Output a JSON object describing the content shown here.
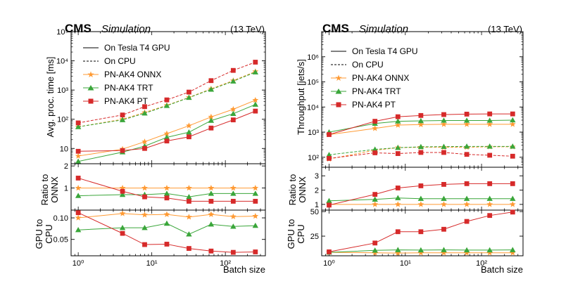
{
  "colors": {
    "onnx": "#ff9a33",
    "trt": "#3aa63a",
    "pt": "#d62a2a",
    "axis": "#000000"
  },
  "batch_sizes": [
    1,
    4,
    8,
    16,
    32,
    64,
    128,
    256
  ],
  "chart_data": [
    {
      "type": "line",
      "title": "CMS Simulation (13 TeV)",
      "header": {
        "cms": "CMS",
        "sim": "Simulation",
        "energy": "(13 TeV)"
      },
      "xlabel": "Batch size",
      "xscale": "log",
      "xlim": [
        0.8,
        350
      ],
      "xticks": [
        {
          "v": 1,
          "label": "10⁰"
        },
        {
          "v": 10,
          "label": "10¹"
        },
        {
          "v": 100,
          "label": "10²"
        }
      ],
      "legend": {
        "placement": "top-left",
        "style_entries": [
          {
            "label": "On Tesla T4 GPU",
            "dash": "solid"
          },
          {
            "label": "On CPU",
            "dash": "dashed"
          }
        ],
        "series_entries": [
          {
            "key": "onnx",
            "label": "PN-AK4 ONNX",
            "marker": "star"
          },
          {
            "key": "trt",
            "label": "PN-AK4 TRT",
            "marker": "triangle"
          },
          {
            "key": "pt",
            "label": "PN-AK4 PT",
            "marker": "square"
          }
        ]
      },
      "panels": [
        {
          "id": "main",
          "ylabel": "Avg. proc. time [ms]",
          "yscale": "log",
          "ylim": [
            3,
            100000
          ],
          "yticks": [
            {
              "v": 10,
              "label": "10"
            },
            {
              "v": 100,
              "label": "10²"
            },
            {
              "v": 1000,
              "label": "10³"
            },
            {
              "v": 10000,
              "label": "10⁴"
            },
            {
              "v": 100000,
              "label": "10⁵"
            }
          ],
          "series": [
            {
              "key": "onnx",
              "device": "GPU",
              "values": [
                5.5,
                9.5,
                17,
                32,
                60,
                120,
                220,
                450
              ]
            },
            {
              "key": "trt",
              "device": "GPU",
              "values": [
                3.6,
                7.5,
                12,
                24,
                36,
                90,
                155,
                320
              ]
            },
            {
              "key": "pt",
              "device": "GPU",
              "values": [
                8,
                8.5,
                10,
                18,
                25,
                50,
                95,
                190
              ]
            },
            {
              "key": "onnx",
              "device": "CPU",
              "values": [
                55,
                100,
                170,
                300,
                560,
                1100,
                2100,
                4300
              ]
            },
            {
              "key": "trt",
              "device": "CPU",
              "values": [
                55,
                95,
                160,
                290,
                550,
                1050,
                2000,
                4100
              ]
            },
            {
              "key": "pt",
              "device": "CPU",
              "values": [
                75,
                140,
                270,
                460,
                850,
                2100,
                4700,
                9000
              ]
            }
          ]
        },
        {
          "id": "ratio",
          "ylabel_lines": [
            "Ratio to",
            "ONNX"
          ],
          "yscale": "linear",
          "ylim": [
            0,
            2.1
          ],
          "yticks": [
            {
              "v": 1,
              "label": "1"
            },
            {
              "v": 2,
              "label": "2"
            }
          ],
          "series": [
            {
              "key": "onnx",
              "values": [
                1,
                1,
                1,
                1,
                1,
                1,
                1,
                1
              ]
            },
            {
              "key": "trt",
              "values": [
                0.65,
                0.7,
                0.7,
                0.75,
                0.6,
                0.75,
                0.75,
                0.75
              ]
            },
            {
              "key": "pt",
              "values": [
                1.45,
                0.85,
                0.6,
                0.55,
                0.4,
                0.4,
                0.4,
                0.4
              ]
            }
          ]
        },
        {
          "id": "gpucpu",
          "ylabel_lines": [
            "GPU to",
            "CPU"
          ],
          "yscale": "linear",
          "ylim": [
            0.012,
            0.118
          ],
          "yticks": [
            {
              "v": 0.05,
              "label": "0.05"
            },
            {
              "v": 0.1,
              "label": "0.10"
            }
          ],
          "series": [
            {
              "key": "onnx",
              "values": [
                0.1,
                0.11,
                0.107,
                0.108,
                0.102,
                0.108,
                0.103,
                0.104
              ]
            },
            {
              "key": "trt",
              "values": [
                0.072,
                0.077,
                0.077,
                0.087,
                0.062,
                0.085,
                0.08,
                0.082
              ]
            },
            {
              "key": "pt",
              "values": [
                0.112,
                0.064,
                0.038,
                0.039,
                0.029,
                0.023,
                0.02,
                0.021
              ]
            }
          ]
        }
      ]
    },
    {
      "type": "line",
      "title": "CMS Simulation (13 TeV)",
      "header": {
        "cms": "CMS",
        "sim": "Simulation",
        "energy": "(13 TeV)"
      },
      "xlabel": "Batch size",
      "xscale": "log",
      "xlim": [
        0.8,
        350
      ],
      "xticks": [
        {
          "v": 1,
          "label": "10⁰"
        },
        {
          "v": 10,
          "label": "10¹"
        },
        {
          "v": 100,
          "label": "10²"
        }
      ],
      "legend": {
        "placement": "top-left",
        "style_entries": [
          {
            "label": "On Tesla T4 GPU",
            "dash": "solid"
          },
          {
            "label": "On CPU",
            "dash": "dashed"
          }
        ],
        "series_entries": [
          {
            "key": "onnx",
            "label": "PN-AK4 ONNX",
            "marker": "star"
          },
          {
            "key": "trt",
            "label": "PN-AK4 TRT",
            "marker": "triangle"
          },
          {
            "key": "pt",
            "label": "PN-AK4 PT",
            "marker": "square"
          }
        ]
      },
      "panels": [
        {
          "id": "main",
          "ylabel": "Throughput [jets/s]",
          "yscale": "log",
          "ylim": [
            40,
            10000000
          ],
          "yticks": [
            {
              "v": 100,
              "label": "10²"
            },
            {
              "v": 1000,
              "label": "10³"
            },
            {
              "v": 10000,
              "label": "10⁴"
            },
            {
              "v": 100000,
              "label": "10⁵"
            },
            {
              "v": 1000000,
              "label": "10⁶"
            }
          ],
          "series": [
            {
              "key": "onnx",
              "device": "GPU",
              "values": [
                800,
                1400,
                1900,
                2000,
                2050,
                2050,
                2050,
                2050
              ]
            },
            {
              "key": "trt",
              "device": "GPU",
              "values": [
                1000,
                2200,
                2700,
                2800,
                2900,
                2900,
                2900,
                3000
              ]
            },
            {
              "key": "pt",
              "device": "GPU",
              "values": [
                800,
                2700,
                4100,
                4600,
                5000,
                5200,
                5300,
                5300
              ]
            },
            {
              "key": "onnx",
              "device": "CPU",
              "values": [
                85,
                190,
                240,
                250,
                250,
                250,
                260,
                260
              ]
            },
            {
              "key": "trt",
              "device": "CPU",
              "values": [
                125,
                205,
                240,
                260,
                265,
                270,
                270,
                270
              ]
            },
            {
              "key": "pt",
              "device": "CPU",
              "values": [
                90,
                150,
                140,
                155,
                155,
                130,
                120,
                110
              ]
            }
          ]
        },
        {
          "id": "ratio",
          "ylabel_lines": [
            "Ratio to",
            "ONNX"
          ],
          "yscale": "linear",
          "ylim": [
            0.6,
            3.6
          ],
          "yticks": [
            {
              "v": 1,
              "label": "1"
            },
            {
              "v": 2,
              "label": "2"
            },
            {
              "v": 3,
              "label": "3"
            }
          ],
          "series": [
            {
              "key": "onnx",
              "values": [
                1,
                1,
                1,
                1,
                1,
                1,
                1,
                1
              ]
            },
            {
              "key": "trt",
              "values": [
                1.25,
                1.35,
                1.45,
                1.4,
                1.4,
                1.4,
                1.4,
                1.4
              ]
            },
            {
              "key": "pt",
              "values": [
                0.95,
                1.7,
                2.15,
                2.3,
                2.4,
                2.45,
                2.45,
                2.45
              ]
            }
          ]
        },
        {
          "id": "gpucpu",
          "ylabel_lines": [
            "GPU to",
            "CPU"
          ],
          "yscale": "linear",
          "ylim": [
            5,
            51.5
          ],
          "yticks": [
            {
              "v": 25,
              "label": "25"
            },
            {
              "v": 50,
              "label": "50"
            }
          ],
          "series": [
            {
              "key": "onnx",
              "values": [
                8.5,
                8,
                7.8,
                8,
                8,
                8,
                8,
                8
              ]
            },
            {
              "key": "trt",
              "values": [
                8.5,
                10.5,
                11,
                10.8,
                11,
                10.8,
                10.8,
                11
              ]
            },
            {
              "key": "pt",
              "values": [
                9,
                18,
                29.5,
                29.5,
                32,
                40,
                46,
                49.5
              ]
            }
          ]
        }
      ]
    }
  ]
}
